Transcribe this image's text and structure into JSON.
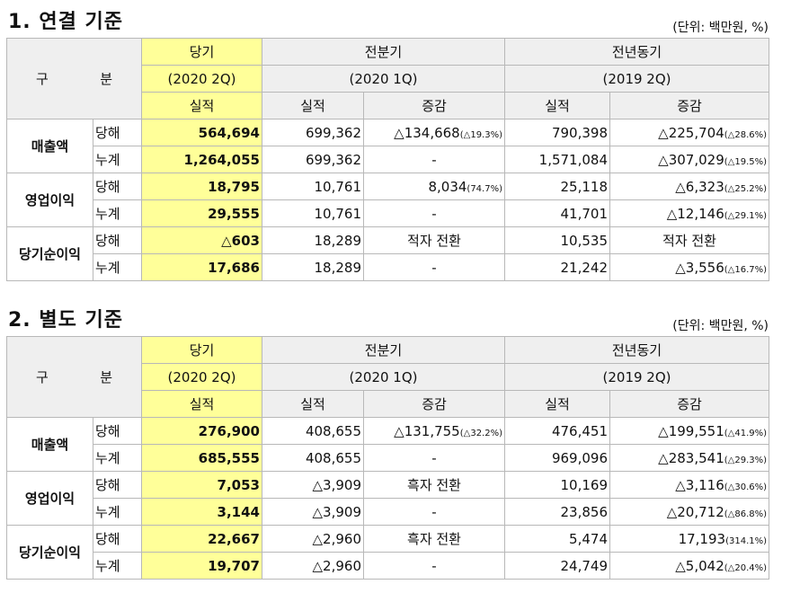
{
  "header": {
    "gubun_a": "구",
    "gubun_b": "분",
    "cur": "당기",
    "cur_q": "(2020 2Q)",
    "prev": "전분기",
    "prev_q": "(2020 1Q)",
    "yoy": "전년동기",
    "yoy_q": "(2019 2Q)",
    "actual": "실적",
    "change": "증감"
  },
  "sections": [
    {
      "title": "1. 연결 기준",
      "unit": "(단위: 백만원, %)",
      "groups": [
        {
          "name": "매출액",
          "rows": [
            {
              "sub": "당해",
              "cur": "564,694",
              "prev": "699,362",
              "prev_chg": "△134,668",
              "prev_pct": "(△19.3%)",
              "yoy": "790,398",
              "yoy_chg": "△225,704",
              "yoy_pct": "(△28.6%)"
            },
            {
              "sub": "누계",
              "cur": "1,264,055",
              "prev": "699,362",
              "prev_chg": "-",
              "prev_pct": "",
              "yoy": "1,571,084",
              "yoy_chg": "△307,029",
              "yoy_pct": "(△19.5%)"
            }
          ]
        },
        {
          "name": "영업이익",
          "rows": [
            {
              "sub": "당해",
              "cur": "18,795",
              "prev": "10,761",
              "prev_chg": "8,034",
              "prev_pct": "(74.7%)",
              "yoy": "25,118",
              "yoy_chg": "△6,323",
              "yoy_pct": "(△25.2%)"
            },
            {
              "sub": "누계",
              "cur": "29,555",
              "prev": "10,761",
              "prev_chg": "-",
              "prev_pct": "",
              "yoy": "41,701",
              "yoy_chg": "△12,146",
              "yoy_pct": "(△29.1%)"
            }
          ]
        },
        {
          "name": "당기순이익",
          "rows": [
            {
              "sub": "당해",
              "cur": "△603",
              "prev": "18,289",
              "prev_chg": "적자 전환",
              "prev_pct": "",
              "yoy": "10,535",
              "yoy_chg": "적자 전환",
              "yoy_pct": ""
            },
            {
              "sub": "누계",
              "cur": "17,686",
              "prev": "18,289",
              "prev_chg": "-",
              "prev_pct": "",
              "yoy": "21,242",
              "yoy_chg": "△3,556",
              "yoy_pct": "(△16.7%)"
            }
          ]
        }
      ]
    },
    {
      "title": "2. 별도 기준",
      "unit": "(단위: 백만원, %)",
      "groups": [
        {
          "name": "매출액",
          "rows": [
            {
              "sub": "당해",
              "cur": "276,900",
              "prev": "408,655",
              "prev_chg": "△131,755",
              "prev_pct": "(△32.2%)",
              "yoy": "476,451",
              "yoy_chg": "△199,551",
              "yoy_pct": "(△41.9%)"
            },
            {
              "sub": "누계",
              "cur": "685,555",
              "prev": "408,655",
              "prev_chg": "-",
              "prev_pct": "",
              "yoy": "969,096",
              "yoy_chg": "△283,541",
              "yoy_pct": "(△29.3%)"
            }
          ]
        },
        {
          "name": "영업이익",
          "rows": [
            {
              "sub": "당해",
              "cur": "7,053",
              "prev": "△3,909",
              "prev_chg": "흑자 전환",
              "prev_pct": "",
              "yoy": "10,169",
              "yoy_chg": "△3,116",
              "yoy_pct": "(△30.6%)"
            },
            {
              "sub": "누계",
              "cur": "3,144",
              "prev": "△3,909",
              "prev_chg": "-",
              "prev_pct": "",
              "yoy": "23,856",
              "yoy_chg": "△20,712",
              "yoy_pct": "(△86.8%)"
            }
          ]
        },
        {
          "name": "당기순이익",
          "rows": [
            {
              "sub": "당해",
              "cur": "22,667",
              "prev": "△2,960",
              "prev_chg": "흑자 전환",
              "prev_pct": "",
              "yoy": "5,474",
              "yoy_chg": "17,193",
              "yoy_pct": "(314.1%)"
            },
            {
              "sub": "누계",
              "cur": "19,707",
              "prev": "△2,960",
              "prev_chg": "-",
              "prev_pct": "",
              "yoy": "24,749",
              "yoy_chg": "△5,042",
              "yoy_pct": "(△20.4%)"
            }
          ]
        }
      ]
    }
  ]
}
